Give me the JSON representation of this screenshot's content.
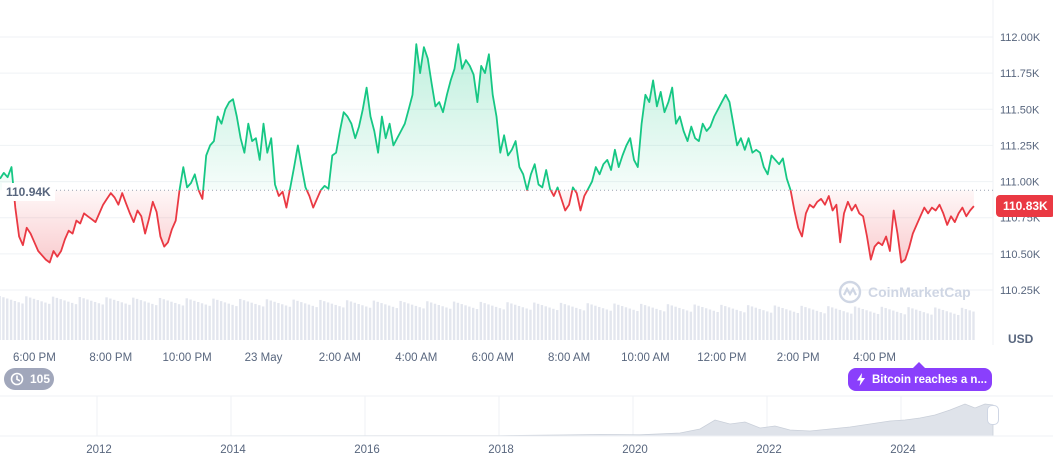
{
  "chart_data": {
    "type": "area",
    "currency": "USD",
    "watermark": "CoinMarketCap",
    "y_axis": {
      "ticks": [
        "112.00K",
        "111.75K",
        "111.50K",
        "111.25K",
        "111.00K",
        "110.75K",
        "110.50K",
        "110.25K"
      ],
      "range": [
        110200,
        112150
      ]
    },
    "reference_line": {
      "value": 110940,
      "label": "110.94K"
    },
    "current_price": {
      "value": 110830,
      "label": "110.83K"
    },
    "x_axis": {
      "ticks": [
        "6:00 PM",
        "8:00 PM",
        "10:00 PM",
        "23 May",
        "2:00 AM",
        "4:00 AM",
        "6:00 AM",
        "8:00 AM",
        "10:00 AM",
        "12:00 PM",
        "2:00 PM",
        "4:00 PM"
      ],
      "range_hours": [
        -0.9,
        25.1
      ]
    },
    "colors": {
      "above": "#16c784",
      "below": "#ea3943",
      "volume": "#e3e6ee",
      "navigator": "#dfe3ea"
    },
    "series": [
      {
        "points": [
          [
            -0.9,
            111.02
          ],
          [
            -0.8,
            111.06
          ],
          [
            -0.7,
            111.03
          ],
          [
            -0.6,
            111.1
          ],
          [
            -0.5,
            110.82
          ],
          [
            -0.4,
            110.62
          ],
          [
            -0.3,
            110.56
          ],
          [
            -0.2,
            110.68
          ],
          [
            -0.1,
            110.64
          ],
          [
            0.0,
            110.58
          ],
          [
            0.1,
            110.52
          ],
          [
            0.2,
            110.49
          ],
          [
            0.3,
            110.46
          ],
          [
            0.4,
            110.44
          ],
          [
            0.5,
            110.52
          ],
          [
            0.6,
            110.48
          ],
          [
            0.7,
            110.52
          ],
          [
            0.8,
            110.6
          ],
          [
            0.9,
            110.66
          ],
          [
            1.0,
            110.64
          ],
          [
            1.1,
            110.73
          ],
          [
            1.2,
            110.71
          ],
          [
            1.3,
            110.78
          ],
          [
            1.4,
            110.76
          ],
          [
            1.5,
            110.74
          ],
          [
            1.6,
            110.72
          ],
          [
            1.7,
            110.78
          ],
          [
            1.8,
            110.84
          ],
          [
            1.9,
            110.88
          ],
          [
            2.0,
            110.92
          ],
          [
            2.1,
            110.89
          ],
          [
            2.2,
            110.84
          ],
          [
            2.3,
            110.92
          ],
          [
            2.4,
            110.85
          ],
          [
            2.5,
            110.78
          ],
          [
            2.6,
            110.72
          ],
          [
            2.7,
            110.8
          ],
          [
            2.8,
            110.76
          ],
          [
            2.9,
            110.64
          ],
          [
            3.0,
            110.74
          ],
          [
            3.1,
            110.86
          ],
          [
            3.2,
            110.79
          ],
          [
            3.3,
            110.62
          ],
          [
            3.4,
            110.55
          ],
          [
            3.5,
            110.58
          ],
          [
            3.6,
            110.67
          ],
          [
            3.7,
            110.73
          ],
          [
            3.8,
            110.94
          ],
          [
            3.9,
            111.1
          ],
          [
            4.0,
            110.96
          ],
          [
            4.1,
            110.99
          ],
          [
            4.2,
            111.05
          ],
          [
            4.3,
            110.94
          ],
          [
            4.4,
            110.88
          ],
          [
            4.5,
            111.18
          ],
          [
            4.6,
            111.25
          ],
          [
            4.7,
            111.28
          ],
          [
            4.8,
            111.45
          ],
          [
            4.9,
            111.4
          ],
          [
            5.0,
            111.5
          ],
          [
            5.1,
            111.55
          ],
          [
            5.2,
            111.57
          ],
          [
            5.3,
            111.45
          ],
          [
            5.4,
            111.3
          ],
          [
            5.5,
            111.2
          ],
          [
            5.6,
            111.4
          ],
          [
            5.7,
            111.28
          ],
          [
            5.8,
            111.3
          ],
          [
            5.9,
            111.15
          ],
          [
            6.0,
            111.4
          ],
          [
            6.1,
            111.2
          ],
          [
            6.2,
            111.3
          ],
          [
            6.3,
            110.98
          ],
          [
            6.4,
            110.9
          ],
          [
            6.5,
            110.93
          ],
          [
            6.6,
            110.82
          ],
          [
            6.7,
            110.96
          ],
          [
            6.8,
            111.1
          ],
          [
            6.9,
            111.25
          ],
          [
            7.0,
            111.1
          ],
          [
            7.1,
            110.96
          ],
          [
            7.2,
            110.9
          ],
          [
            7.3,
            110.82
          ],
          [
            7.4,
            110.88
          ],
          [
            7.5,
            110.94
          ],
          [
            7.6,
            110.97
          ],
          [
            7.7,
            110.95
          ],
          [
            7.8,
            111.18
          ],
          [
            7.9,
            111.2
          ],
          [
            8.0,
            111.35
          ],
          [
            8.1,
            111.48
          ],
          [
            8.2,
            111.45
          ],
          [
            8.3,
            111.4
          ],
          [
            8.4,
            111.3
          ],
          [
            8.5,
            111.38
          ],
          [
            8.6,
            111.5
          ],
          [
            8.7,
            111.65
          ],
          [
            8.8,
            111.45
          ],
          [
            8.9,
            111.35
          ],
          [
            9.0,
            111.2
          ],
          [
            9.1,
            111.45
          ],
          [
            9.2,
            111.3
          ],
          [
            9.3,
            111.4
          ],
          [
            9.4,
            111.25
          ],
          [
            9.5,
            111.3
          ],
          [
            9.6,
            111.35
          ],
          [
            9.7,
            111.4
          ],
          [
            9.8,
            111.5
          ],
          [
            9.9,
            111.6
          ],
          [
            10.0,
            111.95
          ],
          [
            10.1,
            111.75
          ],
          [
            10.2,
            111.93
          ],
          [
            10.3,
            111.85
          ],
          [
            10.4,
            111.68
          ],
          [
            10.5,
            111.52
          ],
          [
            10.6,
            111.55
          ],
          [
            10.7,
            111.48
          ],
          [
            10.8,
            111.6
          ],
          [
            10.9,
            111.7
          ],
          [
            11.0,
            111.78
          ],
          [
            11.1,
            111.95
          ],
          [
            11.2,
            111.78
          ],
          [
            11.3,
            111.84
          ],
          [
            11.4,
            111.8
          ],
          [
            11.5,
            111.74
          ],
          [
            11.6,
            111.55
          ],
          [
            11.7,
            111.8
          ],
          [
            11.8,
            111.75
          ],
          [
            11.9,
            111.88
          ],
          [
            12.0,
            111.6
          ],
          [
            12.1,
            111.45
          ],
          [
            12.2,
            111.2
          ],
          [
            12.3,
            111.32
          ],
          [
            12.4,
            111.18
          ],
          [
            12.5,
            111.22
          ],
          [
            12.6,
            111.28
          ],
          [
            12.7,
            111.1
          ],
          [
            12.8,
            111.05
          ],
          [
            12.9,
            110.94
          ],
          [
            13.0,
            111.05
          ],
          [
            13.1,
            111.12
          ],
          [
            13.2,
            110.98
          ],
          [
            13.3,
            110.96
          ],
          [
            13.4,
            111.08
          ],
          [
            13.5,
            110.95
          ],
          [
            13.6,
            110.9
          ],
          [
            13.7,
            110.96
          ],
          [
            13.8,
            110.88
          ],
          [
            13.9,
            110.8
          ],
          [
            14.0,
            110.84
          ],
          [
            14.1,
            110.96
          ],
          [
            14.2,
            110.92
          ],
          [
            14.3,
            110.8
          ],
          [
            14.4,
            110.9
          ],
          [
            14.5,
            110.95
          ],
          [
            14.6,
            111.0
          ],
          [
            14.7,
            111.1
          ],
          [
            14.8,
            111.05
          ],
          [
            14.9,
            111.12
          ],
          [
            15.0,
            111.15
          ],
          [
            15.1,
            111.08
          ],
          [
            15.2,
            111.22
          ],
          [
            15.3,
            111.1
          ],
          [
            15.4,
            111.18
          ],
          [
            15.5,
            111.25
          ],
          [
            15.6,
            111.3
          ],
          [
            15.7,
            111.15
          ],
          [
            15.8,
            111.1
          ],
          [
            15.9,
            111.4
          ],
          [
            16.0,
            111.6
          ],
          [
            16.1,
            111.55
          ],
          [
            16.2,
            111.7
          ],
          [
            16.3,
            111.52
          ],
          [
            16.4,
            111.62
          ],
          [
            16.5,
            111.48
          ],
          [
            16.6,
            111.55
          ],
          [
            16.7,
            111.65
          ],
          [
            16.8,
            111.4
          ],
          [
            16.9,
            111.45
          ],
          [
            17.0,
            111.35
          ],
          [
            17.1,
            111.28
          ],
          [
            17.2,
            111.38
          ],
          [
            17.3,
            111.3
          ],
          [
            17.4,
            111.28
          ],
          [
            17.5,
            111.4
          ],
          [
            17.6,
            111.35
          ],
          [
            17.7,
            111.38
          ],
          [
            17.8,
            111.45
          ],
          [
            17.9,
            111.5
          ],
          [
            18.0,
            111.55
          ],
          [
            18.1,
            111.6
          ],
          [
            18.2,
            111.55
          ],
          [
            18.3,
            111.4
          ],
          [
            18.4,
            111.25
          ],
          [
            18.5,
            111.3
          ],
          [
            18.6,
            111.22
          ],
          [
            18.7,
            111.3
          ],
          [
            18.8,
            111.2
          ],
          [
            18.9,
            111.22
          ],
          [
            19.0,
            111.2
          ],
          [
            19.1,
            111.1
          ],
          [
            19.2,
            111.05
          ],
          [
            19.3,
            111.18
          ],
          [
            19.4,
            111.15
          ],
          [
            19.5,
            111.12
          ],
          [
            19.6,
            111.16
          ],
          [
            19.7,
            111.02
          ],
          [
            19.8,
            110.94
          ],
          [
            19.9,
            110.8
          ],
          [
            20.0,
            110.68
          ],
          [
            20.1,
            110.62
          ],
          [
            20.2,
            110.78
          ],
          [
            20.3,
            110.84
          ],
          [
            20.4,
            110.82
          ],
          [
            20.5,
            110.86
          ],
          [
            20.6,
            110.88
          ],
          [
            20.7,
            110.84
          ],
          [
            20.8,
            110.9
          ],
          [
            20.9,
            110.8
          ],
          [
            21.0,
            110.84
          ],
          [
            21.1,
            110.58
          ],
          [
            21.2,
            110.78
          ],
          [
            21.3,
            110.86
          ],
          [
            21.4,
            110.8
          ],
          [
            21.5,
            110.84
          ],
          [
            21.6,
            110.78
          ],
          [
            21.7,
            110.76
          ],
          [
            21.8,
            110.62
          ],
          [
            21.9,
            110.46
          ],
          [
            22.0,
            110.55
          ],
          [
            22.1,
            110.58
          ],
          [
            22.2,
            110.56
          ],
          [
            22.3,
            110.62
          ],
          [
            22.4,
            110.52
          ],
          [
            22.5,
            110.8
          ],
          [
            22.6,
            110.64
          ],
          [
            22.7,
            110.44
          ],
          [
            22.8,
            110.46
          ],
          [
            22.9,
            110.54
          ],
          [
            23.0,
            110.64
          ],
          [
            23.1,
            110.7
          ],
          [
            23.2,
            110.76
          ],
          [
            23.3,
            110.82
          ],
          [
            23.4,
            110.78
          ],
          [
            23.5,
            110.82
          ],
          [
            23.6,
            110.8
          ],
          [
            23.7,
            110.84
          ],
          [
            23.8,
            110.78
          ],
          [
            23.9,
            110.7
          ],
          [
            24.0,
            110.76
          ],
          [
            24.1,
            110.72
          ],
          [
            24.2,
            110.78
          ],
          [
            24.3,
            110.82
          ],
          [
            24.4,
            110.76
          ],
          [
            24.5,
            110.8
          ],
          [
            24.6,
            110.83
          ]
        ]
      }
    ],
    "navigator": {
      "ticks": [
        "2012",
        "2014",
        "2016",
        "2018",
        "2020",
        "2022",
        "2024"
      ],
      "range_years": [
        2010.9,
        2025.9
      ]
    }
  },
  "badges": {
    "count_value": "105",
    "news_label": "Bitcoin reaches a n..."
  }
}
